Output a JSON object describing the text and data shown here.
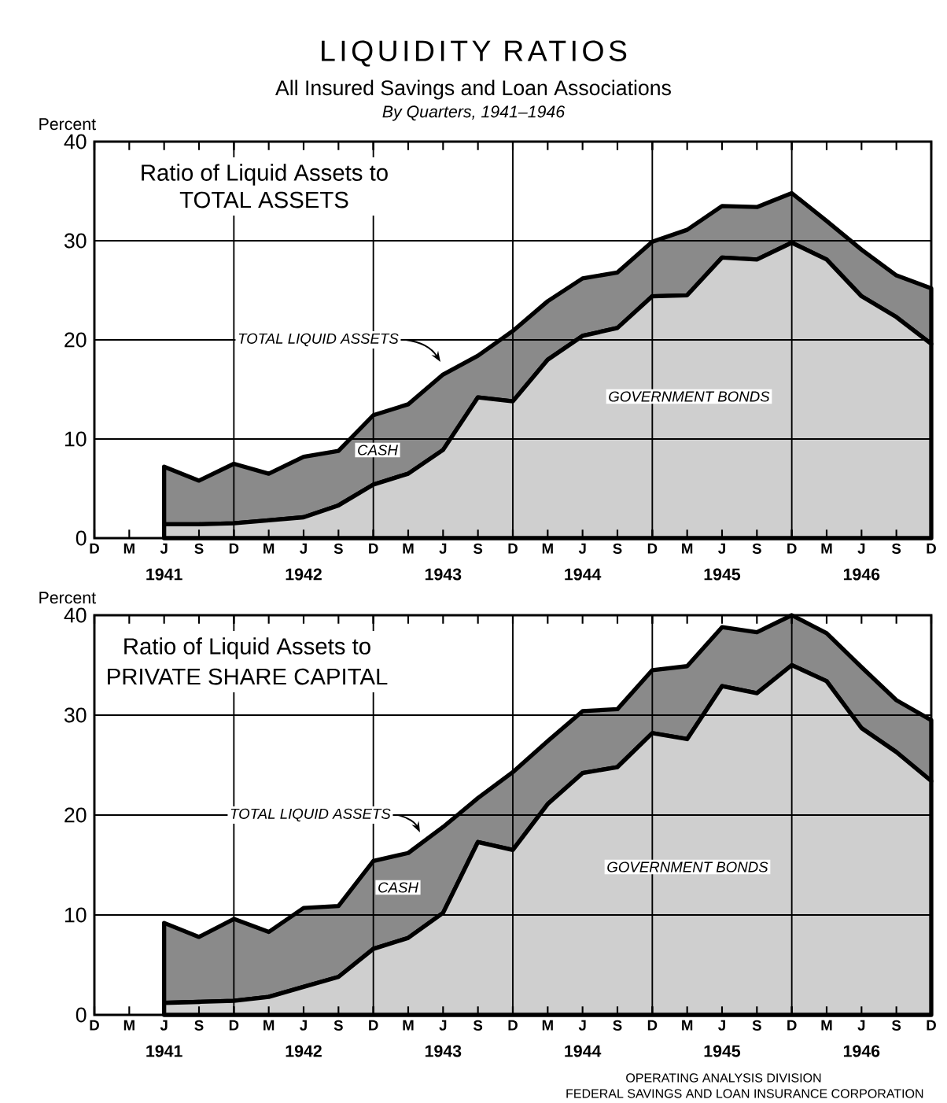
{
  "chart_data": [
    {
      "type": "area",
      "title": "LIQUIDITY RATIOS",
      "subtitle": "All Insured Savings and Loan Associations",
      "ylabel": "Percent",
      "categories": [
        "D",
        "M",
        "J",
        "S",
        "D",
        "M",
        "J",
        "S",
        "D",
        "M",
        "J",
        "S",
        "D",
        "M",
        "J",
        "S",
        "D",
        "M",
        "J",
        "S",
        "D",
        "M",
        "J",
        "S",
        "D"
      ],
      "stacked": true,
      "grid": true,
      "ylim": [
        0,
        40
      ],
      "yticks": [
        0,
        10,
        20,
        30,
        40
      ],
      "series": [
        {
          "name": "GOVERNMENT BONDS",
          "color": "#cfcfcf",
          "values": [
            null,
            null,
            1.4,
            1.4,
            1.5,
            1.8,
            2.1,
            3.3,
            5.4,
            6.5,
            8.9,
            14.2,
            13.8,
            18.0,
            20.4,
            21.2,
            24.4,
            24.5,
            28.3,
            28.1,
            29.8,
            28.1,
            24.4,
            22.3,
            19.6
          ]
        },
        {
          "name": "CASH",
          "color": "#8a8a8a",
          "values": [
            null,
            null,
            5.8,
            4.4,
            6.0,
            4.7,
            6.1,
            5.5,
            7.0,
            7.0,
            7.6,
            4.2,
            7.1,
            5.9,
            5.8,
            5.6,
            5.5,
            6.6,
            5.2,
            5.3,
            5.0,
            3.9,
            4.7,
            4.2,
            5.6
          ]
        }
      ],
      "annotations": [
        "By Quarters, 1941–1946",
        "Ratio of Liquid Assets to",
        "TOTAL ASSETS",
        "TOTAL LIQUID ASSETS",
        "1941",
        "1942",
        "1943",
        "1944",
        "1945",
        "1946"
      ]
    },
    {
      "type": "area",
      "ylabel": "Percent",
      "categories": [
        "D",
        "M",
        "J",
        "S",
        "D",
        "M",
        "J",
        "S",
        "D",
        "M",
        "J",
        "S",
        "D",
        "M",
        "J",
        "S",
        "D",
        "M",
        "J",
        "S",
        "D",
        "M",
        "J",
        "S",
        "D"
      ],
      "stacked": true,
      "grid": true,
      "ylim": [
        0,
        40
      ],
      "yticks": [
        0,
        10,
        20,
        30,
        40
      ],
      "series": [
        {
          "name": "GOVERNMENT BONDS",
          "color": "#cfcfcf",
          "values": [
            null,
            null,
            1.2,
            1.3,
            1.4,
            1.8,
            2.8,
            3.8,
            6.6,
            7.7,
            10.2,
            17.3,
            16.5,
            21.1,
            24.2,
            24.8,
            28.2,
            27.6,
            32.9,
            32.2,
            35.0,
            33.4,
            28.7,
            26.3,
            23.4
          ]
        },
        {
          "name": "CASH",
          "color": "#8a8a8a",
          "values": [
            null,
            null,
            8.0,
            6.5,
            8.2,
            6.5,
            7.9,
            7.1,
            8.8,
            8.5,
            8.6,
            4.4,
            7.8,
            6.3,
            6.2,
            5.8,
            6.3,
            7.3,
            5.9,
            6.1,
            5.0,
            4.8,
            6.1,
            5.2,
            6.1
          ]
        }
      ],
      "annotations": [
        "Ratio of Liquid Assets to",
        "PRIVATE SHARE CAPITAL",
        "TOTAL LIQUID ASSETS",
        "1941",
        "1942",
        "1943",
        "1944",
        "1945",
        "1946",
        "OPERATING ANALYSIS DIVISION",
        "FEDERAL SAVINGS AND LOAN INSURANCE CORPORATION"
      ]
    }
  ]
}
